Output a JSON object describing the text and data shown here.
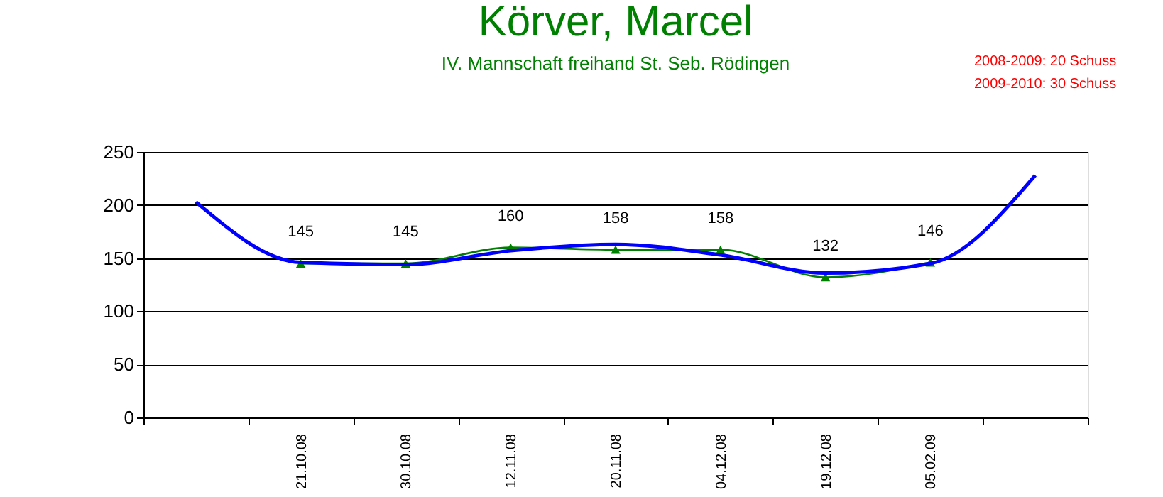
{
  "chart_data": {
    "type": "line",
    "title": "Körver, Marcel",
    "subtitle": "IV. Mannschaft freihand St. Seb. Rödingen",
    "annotations": [
      "2008-2009: 20 Schuss",
      "2009-2010: 30 Schuss"
    ],
    "categories": [
      null,
      "21.10.08",
      "30.10.08",
      "12.11.08",
      "20.11.08",
      "04.12.08",
      "19.12.08",
      "05.02.09",
      null
    ],
    "series": [
      {
        "color": "#008000",
        "values": [
          null,
          145,
          145,
          160,
          158,
          158,
          132,
          146,
          null
        ],
        "marker": "triangle",
        "data_labels": true
      },
      {
        "type": "line",
        "color": "#0000ff",
        "values": [
          203,
          146,
          144,
          157,
          163,
          153,
          136,
          145,
          228
        ],
        "marker": "none"
      }
    ],
    "ylim": [
      0,
      250
    ],
    "yticks": [
      0,
      50,
      100,
      150,
      200,
      250
    ],
    "grid": "y",
    "line_style": "solid"
  }
}
